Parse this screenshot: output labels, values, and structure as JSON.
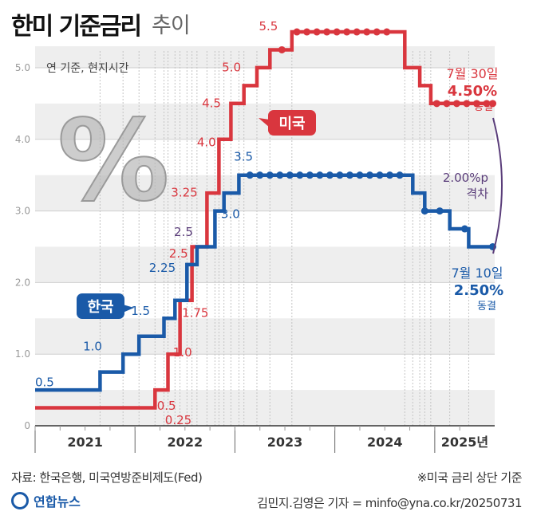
{
  "header": {
    "title": "한미 기준금리",
    "subtitle": "추이"
  },
  "footer": {
    "source": "자료: 한국은행, 미국연방준비제도(Fed)",
    "note": "※미국 금리 상단 기준",
    "credit": "김민지.김영은 기자 = minfo@yna.co.kr/20250731",
    "logo": "연합뉴스"
  },
  "colors": {
    "us": "#d9363e",
    "korea": "#1a5aa8",
    "gap": "#5a3d7a",
    "percent_icon": "#b8b8b8"
  },
  "chart_data": {
    "type": "line",
    "title": "한미 기준금리 추이",
    "unit_note": "연 기준, 현지시간",
    "xlim": [
      2021,
      2025.6
    ],
    "ylim": [
      0,
      5.3
    ],
    "y_ticks": [
      {
        "v": 0,
        "label": "0"
      },
      {
        "v": 1,
        "label": "1.0"
      },
      {
        "v": 2,
        "label": "2.0"
      },
      {
        "v": 3,
        "label": "3.0"
      },
      {
        "v": 4,
        "label": "4.0"
      },
      {
        "v": 5,
        "label": "5.0"
      }
    ],
    "x_year_labels": [
      {
        "x": 2021.5,
        "label": "2021"
      },
      {
        "x": 2022.5,
        "label": "2022"
      },
      {
        "x": 2023.5,
        "label": "2023"
      },
      {
        "x": 2024.5,
        "label": "2024"
      },
      {
        "x": 2025.3,
        "label": "2025년"
      }
    ],
    "grid": true,
    "series": [
      {
        "name": "미국",
        "color": "#d9363e",
        "points": [
          [
            2021.0,
            0.25
          ],
          [
            2022.2,
            0.25
          ],
          [
            2022.2,
            0.5
          ],
          [
            2022.33,
            0.5
          ],
          [
            2022.33,
            1.0
          ],
          [
            2022.45,
            1.0
          ],
          [
            2022.45,
            1.75
          ],
          [
            2022.57,
            1.75
          ],
          [
            2022.57,
            2.5
          ],
          [
            2022.72,
            2.5
          ],
          [
            2022.72,
            3.25
          ],
          [
            2022.84,
            3.25
          ],
          [
            2022.84,
            4.0
          ],
          [
            2022.96,
            4.0
          ],
          [
            2022.96,
            4.5
          ],
          [
            2023.09,
            4.5
          ],
          [
            2023.09,
            4.75
          ],
          [
            2023.22,
            4.75
          ],
          [
            2023.22,
            5.0
          ],
          [
            2023.35,
            5.0
          ],
          [
            2023.35,
            5.25
          ],
          [
            2023.57,
            5.25
          ],
          [
            2023.57,
            5.5
          ],
          [
            2024.7,
            5.5
          ],
          [
            2024.7,
            5.0
          ],
          [
            2024.85,
            5.0
          ],
          [
            2024.85,
            4.75
          ],
          [
            2024.96,
            4.75
          ],
          [
            2024.96,
            4.5
          ],
          [
            2025.58,
            4.5
          ]
        ],
        "dots": [
          [
            2023.47,
            5.25
          ],
          [
            2023.62,
            5.5
          ],
          [
            2023.72,
            5.5
          ],
          [
            2023.82,
            5.5
          ],
          [
            2023.92,
            5.5
          ],
          [
            2024.02,
            5.5
          ],
          [
            2024.12,
            5.5
          ],
          [
            2024.22,
            5.5
          ],
          [
            2024.32,
            5.5
          ],
          [
            2024.42,
            5.5
          ],
          [
            2024.52,
            5.5
          ],
          [
            2025.02,
            4.5
          ],
          [
            2025.12,
            4.5
          ],
          [
            2025.22,
            4.5
          ],
          [
            2025.32,
            4.5
          ],
          [
            2025.42,
            4.5
          ],
          [
            2025.52,
            4.5
          ],
          [
            2025.58,
            4.5
          ]
        ],
        "value_labels": [
          "0.25",
          "0.5",
          "1.0",
          "1.75",
          "2.5",
          "3.25",
          "4.0",
          "4.5",
          "5.0",
          "5.5"
        ],
        "end_label": {
          "date": "7월 30일",
          "value": "4.50%",
          "note": "동결"
        }
      },
      {
        "name": "한국",
        "color": "#1a5aa8",
        "points": [
          [
            2021.0,
            0.5
          ],
          [
            2021.65,
            0.5
          ],
          [
            2021.65,
            0.75
          ],
          [
            2021.88,
            0.75
          ],
          [
            2021.88,
            1.0
          ],
          [
            2022.04,
            1.0
          ],
          [
            2022.04,
            1.25
          ],
          [
            2022.29,
            1.25
          ],
          [
            2022.29,
            1.5
          ],
          [
            2022.4,
            1.5
          ],
          [
            2022.4,
            1.75
          ],
          [
            2022.52,
            1.75
          ],
          [
            2022.52,
            2.25
          ],
          [
            2022.62,
            2.25
          ],
          [
            2022.62,
            2.5
          ],
          [
            2022.8,
            2.5
          ],
          [
            2022.8,
            3.0
          ],
          [
            2022.89,
            3.0
          ],
          [
            2022.89,
            3.25
          ],
          [
            2023.04,
            3.25
          ],
          [
            2023.04,
            3.5
          ],
          [
            2024.78,
            3.5
          ],
          [
            2024.78,
            3.25
          ],
          [
            2024.9,
            3.25
          ],
          [
            2024.9,
            3.0
          ],
          [
            2025.15,
            3.0
          ],
          [
            2025.15,
            2.75
          ],
          [
            2025.34,
            2.75
          ],
          [
            2025.34,
            2.5
          ],
          [
            2025.58,
            2.5
          ]
        ],
        "dots": [
          [
            2023.15,
            3.5
          ],
          [
            2023.25,
            3.5
          ],
          [
            2023.35,
            3.5
          ],
          [
            2023.45,
            3.5
          ],
          [
            2023.55,
            3.5
          ],
          [
            2023.65,
            3.5
          ],
          [
            2023.75,
            3.5
          ],
          [
            2023.85,
            3.5
          ],
          [
            2023.95,
            3.5
          ],
          [
            2024.05,
            3.5
          ],
          [
            2024.15,
            3.5
          ],
          [
            2024.25,
            3.5
          ],
          [
            2024.35,
            3.5
          ],
          [
            2024.45,
            3.5
          ],
          [
            2024.55,
            3.5
          ],
          [
            2024.65,
            3.5
          ],
          [
            2024.9,
            3.0
          ],
          [
            2025.05,
            3.0
          ],
          [
            2025.3,
            2.75
          ],
          [
            2025.58,
            2.5
          ]
        ],
        "value_labels": [
          "0.5",
          "1.0",
          "1.5",
          "2.25",
          "2.5",
          "3.0",
          "3.5"
        ],
        "end_label": {
          "date": "7월 10일",
          "value": "2.50%",
          "note": "동결"
        }
      }
    ],
    "annotations": {
      "gap": {
        "value": "2.00%p",
        "label": "격차"
      },
      "us_tag": "미국",
      "korea_tag": "한국",
      "percent_icon": "%"
    }
  }
}
